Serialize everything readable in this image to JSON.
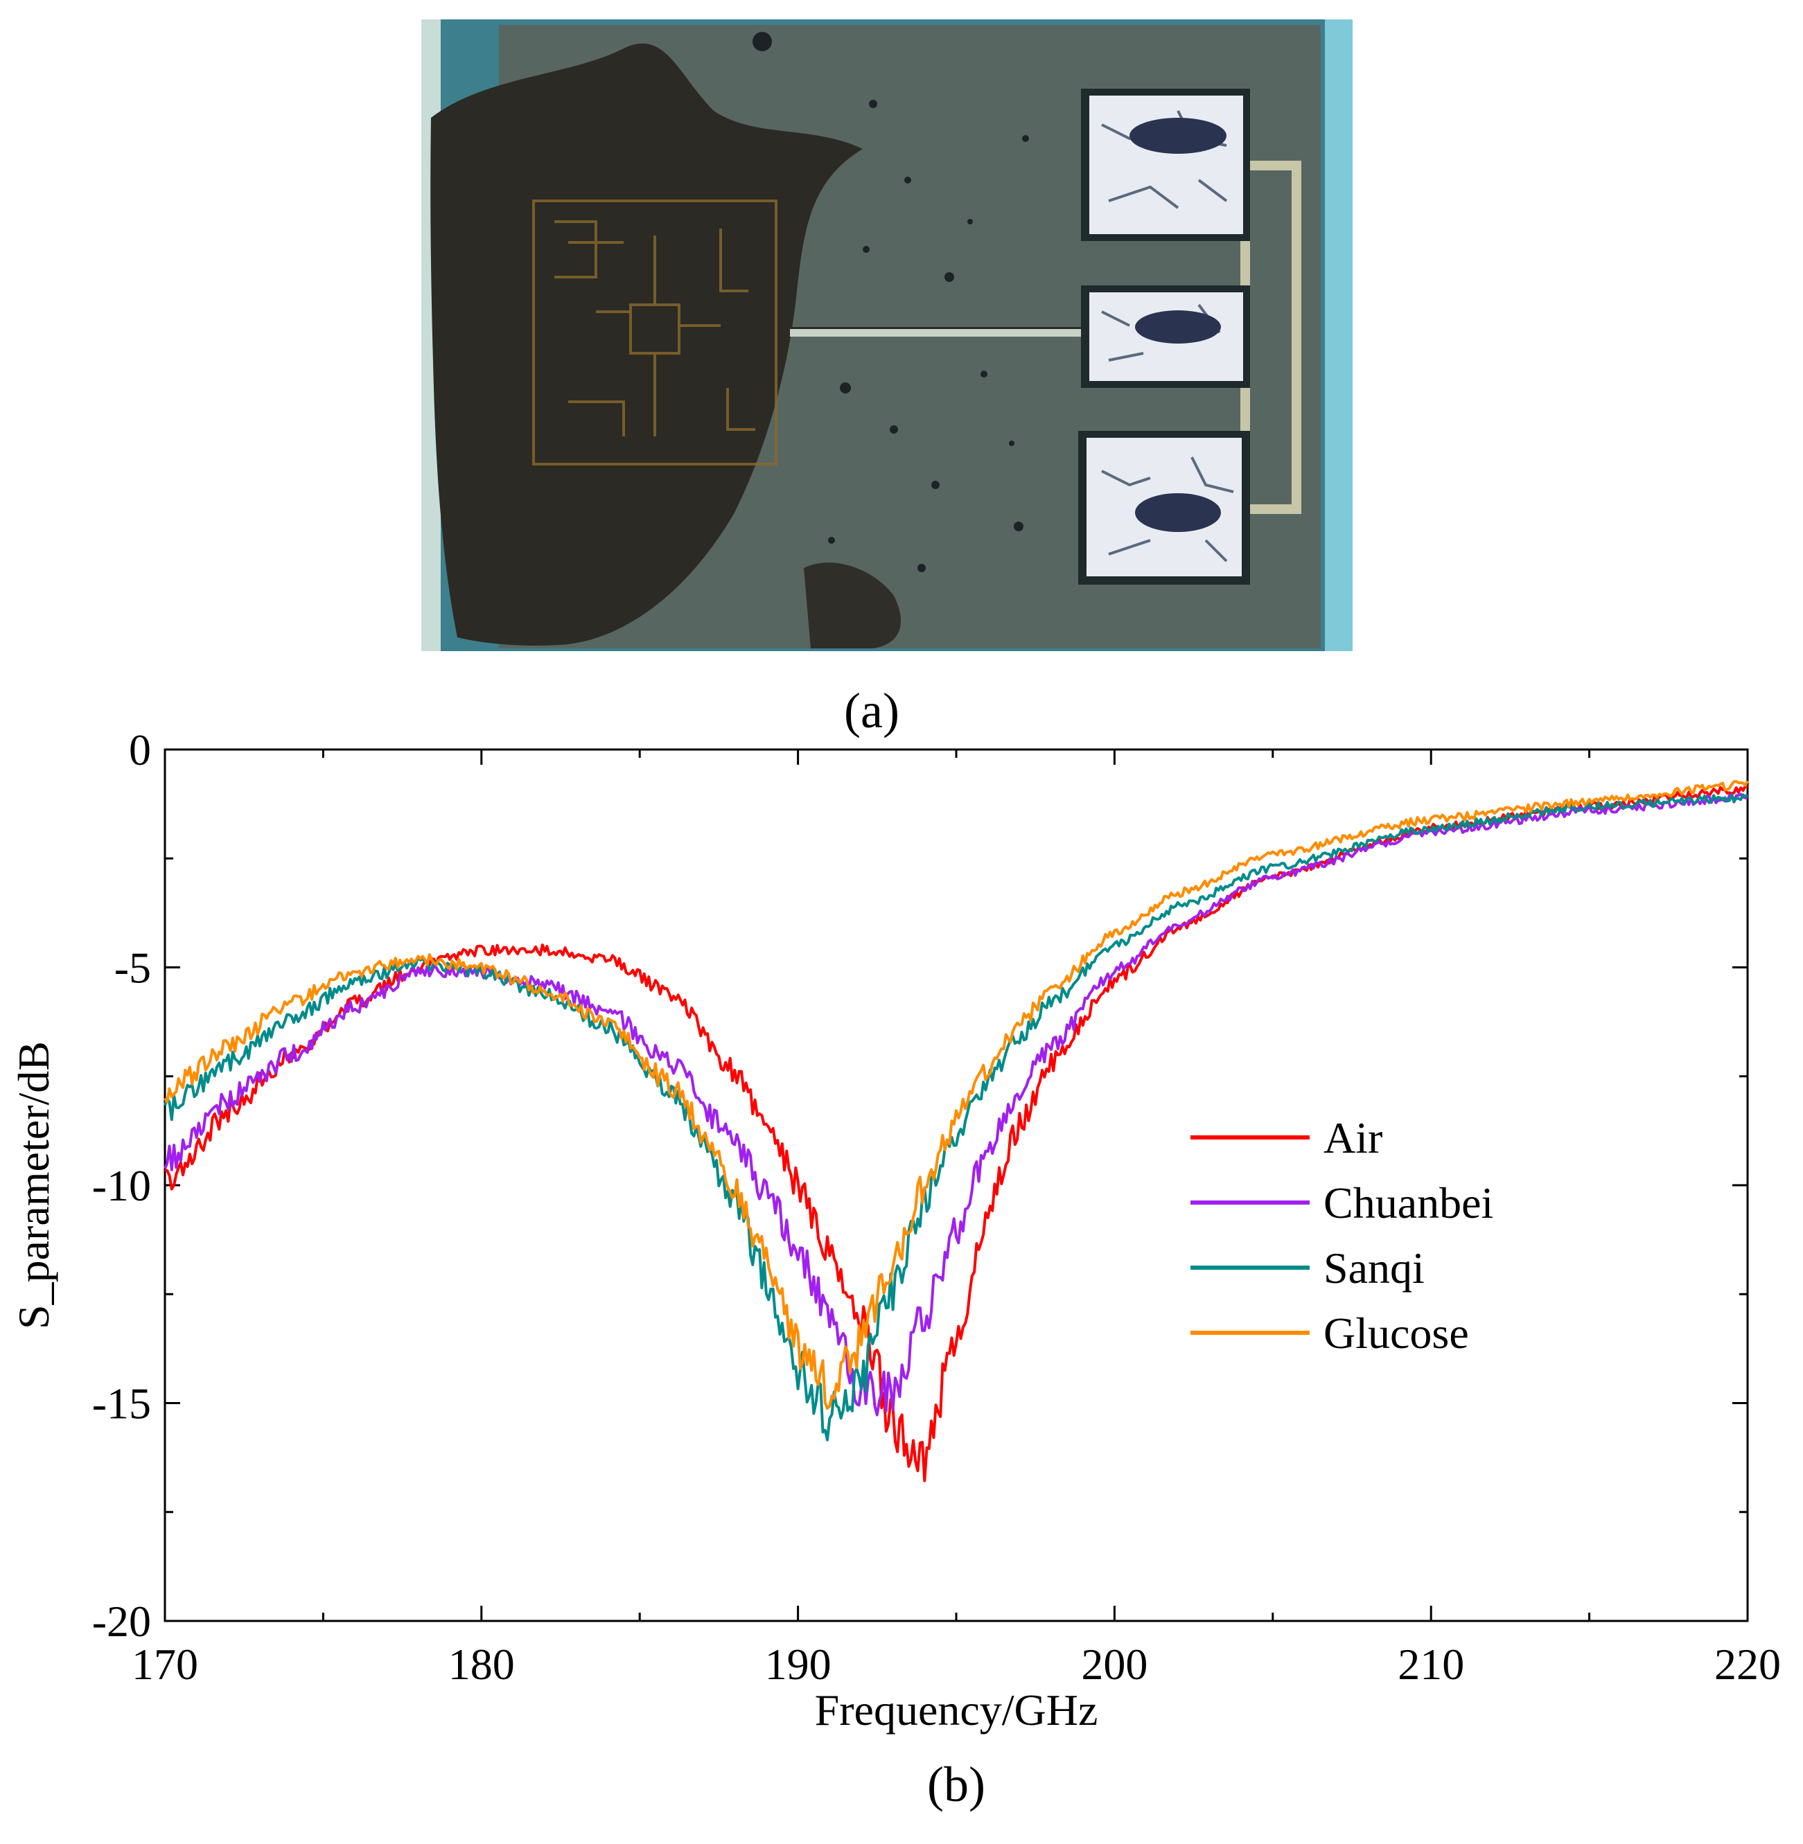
{
  "panel_a": {
    "caption": "(a)",
    "description": "Microscope photograph of the THz sensor chip with a sample droplet and three probe pads"
  },
  "panel_b": {
    "caption": "(b)"
  },
  "colors": {
    "air": "#ff0000",
    "chuanbei": "#a020f0",
    "sanqi": "#008b8b",
    "glucose": "#ff8c00"
  },
  "chart_data": {
    "type": "line",
    "title": "",
    "xlabel": "Frequency/GHz",
    "ylabel": "S_parameter/dB",
    "xlim": [
      170,
      220
    ],
    "ylim": [
      -20,
      0
    ],
    "xticks": [
      170,
      180,
      190,
      200,
      210,
      220
    ],
    "yticks": [
      0,
      -5,
      -10,
      -15,
      -20
    ],
    "grid": false,
    "legend_position": "right",
    "series": [
      {
        "name": "Air",
        "color": "#ff0000",
        "x": [
          170,
          172,
          174,
          176,
          178,
          180,
          182,
          184,
          186,
          188,
          189,
          190,
          191,
          192,
          193,
          194,
          195,
          196,
          197,
          198,
          200,
          202,
          205,
          210,
          215,
          220
        ],
        "y": [
          -10.0,
          -8.3,
          -7.0,
          -5.8,
          -5.0,
          -4.6,
          -4.6,
          -4.8,
          -5.6,
          -7.4,
          -8.6,
          -10.0,
          -11.5,
          -13.0,
          -15.5,
          -16.2,
          -13.5,
          -10.5,
          -8.6,
          -7.2,
          -5.3,
          -4.1,
          -2.9,
          -1.8,
          -1.3,
          -0.9
        ]
      },
      {
        "name": "Chuanbei",
        "color": "#a020f0",
        "x": [
          170,
          172,
          174,
          176,
          178,
          180,
          182,
          184,
          186,
          188,
          189,
          190,
          191,
          192,
          193,
          194,
          195,
          196,
          197,
          198,
          200,
          202,
          205,
          210,
          215,
          220
        ],
        "y": [
          -9.5,
          -8.0,
          -7.0,
          -5.9,
          -5.1,
          -5.1,
          -5.4,
          -6.0,
          -7.2,
          -9.0,
          -10.2,
          -11.5,
          -13.0,
          -14.8,
          -14.6,
          -13.0,
          -11.0,
          -9.2,
          -7.8,
          -6.8,
          -5.1,
          -4.0,
          -2.9,
          -1.9,
          -1.4,
          -1.1
        ]
      },
      {
        "name": "Sanqi",
        "color": "#008b8b",
        "x": [
          170,
          172,
          174,
          176,
          178,
          180,
          182,
          184,
          186,
          188,
          189,
          190,
          191,
          192,
          193,
          194,
          195,
          196,
          197,
          198,
          200,
          202,
          205,
          210,
          215,
          220
        ],
        "y": [
          -8.3,
          -7.2,
          -6.2,
          -5.3,
          -4.9,
          -5.1,
          -5.6,
          -6.4,
          -7.9,
          -10.3,
          -12.2,
          -14.2,
          -15.3,
          -14.4,
          -12.4,
          -10.4,
          -8.8,
          -7.6,
          -6.6,
          -5.8,
          -4.5,
          -3.6,
          -2.7,
          -1.8,
          -1.3,
          -1.1
        ]
      },
      {
        "name": "Glucose",
        "color": "#ff8c00",
        "x": [
          170,
          172,
          174,
          176,
          178,
          180,
          182,
          184,
          186,
          188,
          189,
          190,
          191,
          192,
          193,
          194,
          195,
          196,
          197,
          198,
          200,
          202,
          205,
          210,
          215,
          220
        ],
        "y": [
          -7.9,
          -6.8,
          -5.8,
          -5.1,
          -4.8,
          -5.0,
          -5.5,
          -6.3,
          -7.7,
          -10.0,
          -11.7,
          -13.8,
          -14.6,
          -13.6,
          -11.8,
          -10.0,
          -8.5,
          -7.3,
          -6.3,
          -5.5,
          -4.2,
          -3.3,
          -2.4,
          -1.6,
          -1.2,
          -0.8
        ]
      }
    ]
  }
}
